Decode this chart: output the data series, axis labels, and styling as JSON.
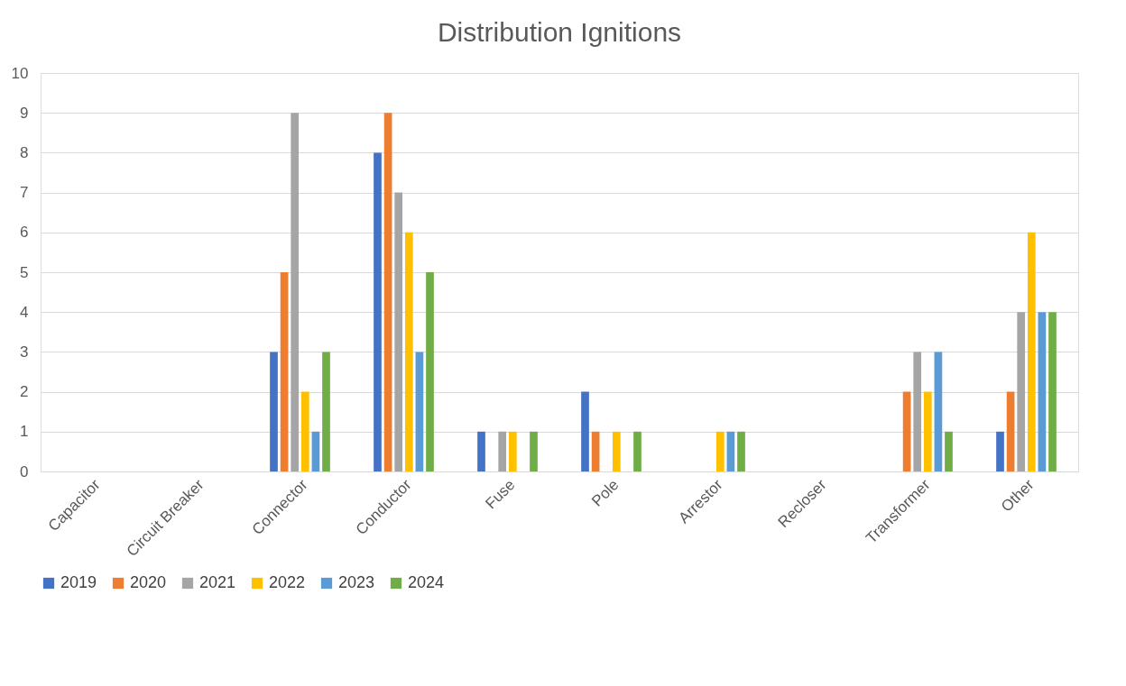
{
  "chart_data": {
    "type": "bar",
    "title": "Distribution Ignitions",
    "categories": [
      "Capacitor",
      "Circuit Breaker",
      "Connector",
      "Conductor",
      "Fuse",
      "Pole",
      "Arrestor",
      "Recloser",
      "Transformer",
      "Other"
    ],
    "series": [
      {
        "name": "2019",
        "color": "#4472c4",
        "values": [
          0,
          0,
          3,
          8,
          1,
          2,
          0,
          0,
          0,
          1
        ]
      },
      {
        "name": "2020",
        "color": "#ed7d31",
        "values": [
          0,
          0,
          5,
          9,
          0,
          1,
          0,
          0,
          2,
          2
        ]
      },
      {
        "name": "2021",
        "color": "#a5a5a5",
        "values": [
          0,
          0,
          9,
          7,
          1,
          0,
          0,
          0,
          3,
          4
        ]
      },
      {
        "name": "2022",
        "color": "#ffc000",
        "values": [
          0,
          0,
          2,
          6,
          1,
          1,
          1,
          0,
          2,
          6
        ]
      },
      {
        "name": "2023",
        "color": "#5b9bd5",
        "values": [
          0,
          0,
          1,
          3,
          0,
          0,
          1,
          0,
          3,
          4
        ]
      },
      {
        "name": "2024",
        "color": "#70ad47",
        "values": [
          0,
          0,
          3,
          5,
          1,
          1,
          1,
          0,
          1,
          4
        ]
      }
    ],
    "ylim": [
      0,
      10
    ],
    "yticks": [
      0,
      1,
      2,
      3,
      4,
      5,
      6,
      7,
      8,
      9,
      10
    ],
    "grid": "y",
    "legend": "bottom"
  }
}
